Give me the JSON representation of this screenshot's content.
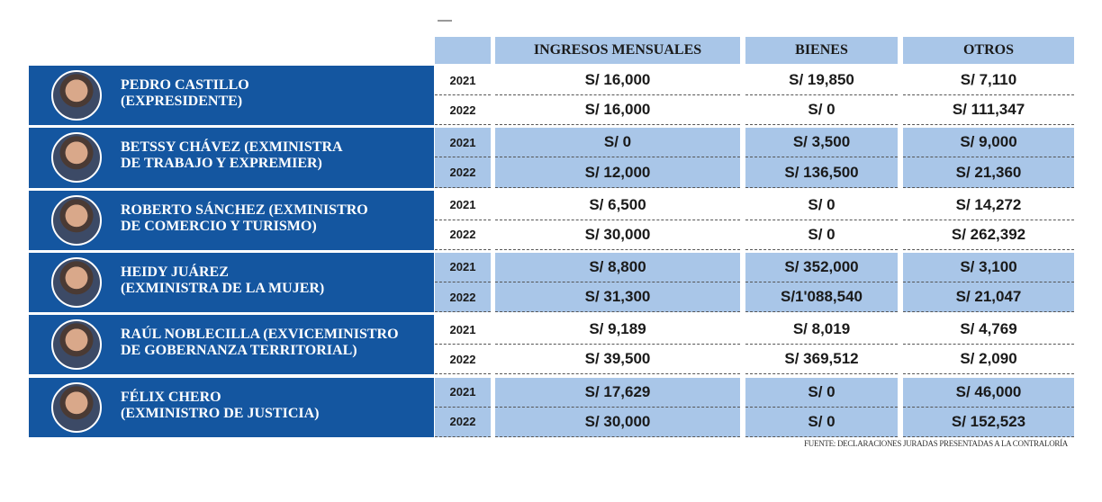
{
  "header": {
    "columns": [
      "INGRESOS MENSUALES",
      "BIENES",
      "OTROS"
    ]
  },
  "people": [
    {
      "name_lines": [
        "PEDRO CASTILLO",
        "(EXPRESIDENTE)"
      ],
      "rows": [
        {
          "year": "2021",
          "values": [
            "S/ 16,000",
            "S/ 19,850",
            "S/ 7,110"
          ]
        },
        {
          "year": "2022",
          "values": [
            "S/ 16,000",
            "S/ 0",
            "S/ 111,347"
          ]
        }
      ]
    },
    {
      "name_lines": [
        "BETSSY CHÁVEZ (EXMINISTRA",
        "DE TRABAJO Y EXPREMIER)"
      ],
      "rows": [
        {
          "year": "2021",
          "values": [
            "S/ 0",
            "S/ 3,500",
            "S/ 9,000"
          ]
        },
        {
          "year": "2022",
          "values": [
            "S/ 12,000",
            "S/ 136,500",
            "S/ 21,360"
          ]
        }
      ]
    },
    {
      "name_lines": [
        "ROBERTO SÁNCHEZ (EXMINISTRO",
        "DE COMERCIO Y TURISMO)"
      ],
      "rows": [
        {
          "year": "2021",
          "values": [
            "S/ 6,500",
            "S/ 0",
            "S/ 14,272"
          ]
        },
        {
          "year": "2022",
          "values": [
            "S/ 30,000",
            "S/ 0",
            "S/ 262,392"
          ]
        }
      ]
    },
    {
      "name_lines": [
        "HEIDY JUÁREZ",
        "(EXMINISTRA DE LA MUJER)"
      ],
      "rows": [
        {
          "year": "2021",
          "values": [
            "S/ 8,800",
            "S/ 352,000",
            "S/ 3,100"
          ]
        },
        {
          "year": "2022",
          "values": [
            "S/ 31,300",
            "S/1'088,540",
            "S/ 21,047"
          ]
        }
      ]
    },
    {
      "name_lines": [
        "RAÚL NOBLECILLA (EXVICEMINISTRO",
        "DE GOBERNANZA TERRITORIAL)"
      ],
      "rows": [
        {
          "year": "2021",
          "values": [
            "S/ 9,189",
            "S/ 8,019",
            "S/ 4,769"
          ]
        },
        {
          "year": "2022",
          "values": [
            "S/ 39,500",
            "S/ 369,512",
            "S/ 2,090"
          ]
        }
      ]
    },
    {
      "name_lines": [
        "FÉLIX CHERO",
        "(EXMINISTRO DE JUSTICIA)"
      ],
      "rows": [
        {
          "year": "2021",
          "values": [
            "S/ 17,629",
            "S/ 0",
            "S/ 46,000"
          ]
        },
        {
          "year": "2022",
          "values": [
            "S/ 30,000",
            "S/ 0",
            "S/ 152,523"
          ]
        }
      ]
    }
  ],
  "source": "FUENTE: DECLARACIONES JURADAS PRESENTADAS A LA CONTRALORÍA"
}
